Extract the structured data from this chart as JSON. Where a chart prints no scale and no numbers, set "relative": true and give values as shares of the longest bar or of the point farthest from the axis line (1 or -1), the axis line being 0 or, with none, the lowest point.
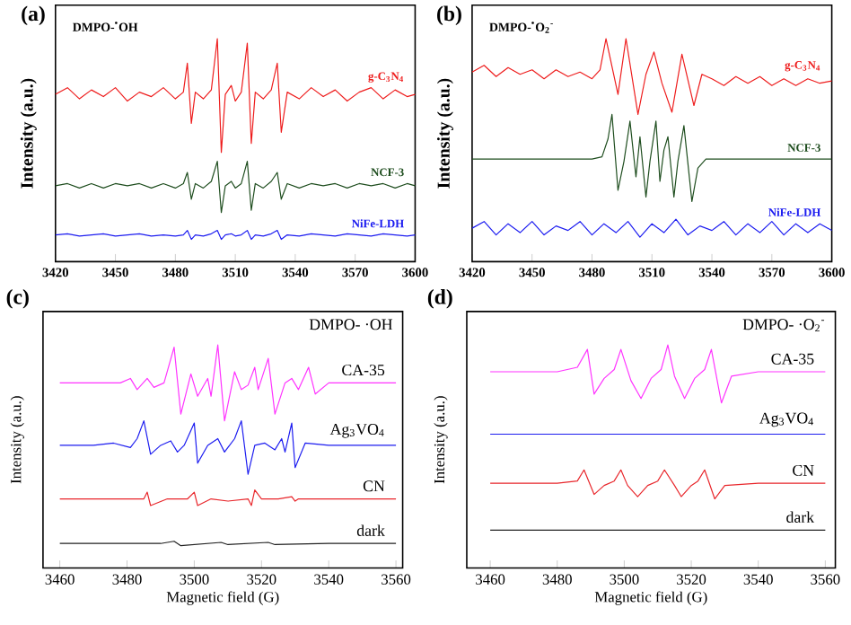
{
  "chart_data": [
    {
      "type": "line",
      "title": "(a)",
      "ylabel": "Intensity (a.u.)",
      "relative": true,
      "annotations": [
        "DMPO-$^{•}$OH"
      ],
      "xlim": [
        3420,
        3600
      ],
      "xticks": [
        3420,
        3450,
        3480,
        3510,
        3540,
        3570,
        3600
      ],
      "series": [
        {
          "name": "g-C$_{3}$N$_{4}$",
          "color": "#ee1c1c",
          "x": [
            3420,
            3426,
            3432,
            3438,
            3444,
            3450,
            3456,
            3462,
            3468,
            3474,
            3480,
            3484,
            3486,
            3488,
            3490,
            3494,
            3498,
            3501,
            3503,
            3505,
            3508,
            3510,
            3513,
            3516,
            3518,
            3520,
            3524,
            3528,
            3531,
            3533,
            3536,
            3542,
            3548,
            3554,
            3560,
            3566,
            3572,
            3578,
            3584,
            3590,
            3596,
            3600
          ],
          "values": [
            0.75,
            0.78,
            0.73,
            0.77,
            0.74,
            0.78,
            0.72,
            0.76,
            0.74,
            0.78,
            0.73,
            0.76,
            0.89,
            0.62,
            0.76,
            0.73,
            0.77,
            1.0,
            0.49,
            0.75,
            0.79,
            0.72,
            0.76,
            0.98,
            0.53,
            0.76,
            0.73,
            0.77,
            0.89,
            0.58,
            0.76,
            0.73,
            0.78,
            0.74,
            0.77,
            0.72,
            0.76,
            0.78,
            0.73,
            0.77,
            0.74,
            0.75
          ]
        },
        {
          "name": "NCF-3",
          "color": "#1e4d1e",
          "x": [
            3420,
            3426,
            3432,
            3438,
            3444,
            3450,
            3456,
            3462,
            3468,
            3474,
            3480,
            3484,
            3486,
            3488,
            3490,
            3494,
            3498,
            3501,
            3503,
            3505,
            3508,
            3510,
            3513,
            3516,
            3518,
            3520,
            3524,
            3528,
            3531,
            3533,
            3536,
            3542,
            3548,
            3554,
            3560,
            3566,
            3572,
            3578,
            3584,
            3590,
            3596,
            3600
          ],
          "values": [
            0.34,
            0.35,
            0.33,
            0.35,
            0.33,
            0.35,
            0.34,
            0.35,
            0.33,
            0.35,
            0.33,
            0.35,
            0.4,
            0.28,
            0.35,
            0.33,
            0.36,
            0.45,
            0.22,
            0.34,
            0.36,
            0.33,
            0.35,
            0.45,
            0.23,
            0.35,
            0.33,
            0.36,
            0.4,
            0.28,
            0.35,
            0.33,
            0.35,
            0.34,
            0.35,
            0.33,
            0.35,
            0.34,
            0.35,
            0.33,
            0.35,
            0.34
          ]
        },
        {
          "name": "NiFe-LDH",
          "color": "#1c1cf0",
          "x": [
            3420,
            3426,
            3432,
            3438,
            3444,
            3450,
            3456,
            3462,
            3468,
            3474,
            3480,
            3484,
            3486,
            3488,
            3490,
            3494,
            3498,
            3501,
            3503,
            3505,
            3508,
            3510,
            3513,
            3516,
            3518,
            3520,
            3524,
            3528,
            3531,
            3533,
            3536,
            3542,
            3548,
            3554,
            3560,
            3566,
            3572,
            3578,
            3584,
            3590,
            3596,
            3600
          ],
          "values": [
            0.12,
            0.125,
            0.115,
            0.12,
            0.125,
            0.115,
            0.12,
            0.125,
            0.115,
            0.12,
            0.115,
            0.12,
            0.14,
            0.1,
            0.12,
            0.115,
            0.125,
            0.14,
            0.1,
            0.12,
            0.125,
            0.115,
            0.12,
            0.14,
            0.1,
            0.12,
            0.115,
            0.125,
            0.14,
            0.1,
            0.12,
            0.115,
            0.125,
            0.12,
            0.115,
            0.125,
            0.12,
            0.115,
            0.125,
            0.12,
            0.115,
            0.12
          ]
        }
      ]
    },
    {
      "type": "line",
      "title": "(b)",
      "ylabel": "Intensity (a.u.)",
      "relative": true,
      "annotations": [
        "DMPO-$^{•}$O$_{2}$$^{-}$"
      ],
      "xlim": [
        3420,
        3600
      ],
      "xticks": [
        3420,
        3450,
        3480,
        3510,
        3540,
        3570,
        3600
      ],
      "series": [
        {
          "name": "g-C$_{3}$N$_{4}$",
          "color": "#ee1c1c",
          "x": [
            3420,
            3426,
            3432,
            3438,
            3444,
            3450,
            3456,
            3462,
            3468,
            3474,
            3480,
            3484,
            3487,
            3493,
            3497,
            3503,
            3507,
            3511,
            3515,
            3520,
            3525,
            3531,
            3535,
            3540,
            3546,
            3552,
            3558,
            3564,
            3570,
            3576,
            3582,
            3588,
            3594,
            3600
          ],
          "values": [
            0.85,
            0.88,
            0.83,
            0.87,
            0.84,
            0.86,
            0.82,
            0.86,
            0.83,
            0.85,
            0.82,
            0.86,
            1.0,
            0.75,
            1.0,
            0.66,
            0.84,
            0.94,
            0.8,
            0.67,
            0.93,
            0.7,
            0.84,
            0.82,
            0.79,
            0.83,
            0.8,
            0.83,
            0.79,
            0.82,
            0.79,
            0.82,
            0.8,
            0.81
          ]
        },
        {
          "name": "NCF-3",
          "color": "#1e4d1e",
          "x": [
            3420,
            3440,
            3460,
            3480,
            3485,
            3488,
            3490,
            3493,
            3496,
            3499,
            3502,
            3504,
            3507,
            3509,
            3512,
            3514,
            3516,
            3518,
            3521,
            3523,
            3526,
            3530,
            3533,
            3537,
            3545,
            3560,
            3580,
            3600
          ],
          "values": [
            0.46,
            0.46,
            0.46,
            0.46,
            0.47,
            0.55,
            0.66,
            0.32,
            0.45,
            0.63,
            0.38,
            0.56,
            0.29,
            0.45,
            0.63,
            0.36,
            0.5,
            0.56,
            0.29,
            0.45,
            0.61,
            0.27,
            0.42,
            0.46,
            0.46,
            0.46,
            0.46,
            0.46
          ]
        },
        {
          "name": "NiFe-LDH",
          "color": "#1c1cf0",
          "x": [
            3420,
            3426,
            3432,
            3438,
            3444,
            3450,
            3456,
            3462,
            3468,
            3474,
            3480,
            3486,
            3492,
            3498,
            3504,
            3510,
            3516,
            3522,
            3528,
            3534,
            3540,
            3546,
            3552,
            3558,
            3564,
            3570,
            3576,
            3582,
            3588,
            3594,
            3600
          ],
          "values": [
            0.15,
            0.18,
            0.12,
            0.17,
            0.13,
            0.18,
            0.12,
            0.16,
            0.14,
            0.18,
            0.12,
            0.17,
            0.13,
            0.18,
            0.11,
            0.17,
            0.13,
            0.19,
            0.12,
            0.16,
            0.14,
            0.18,
            0.12,
            0.17,
            0.13,
            0.18,
            0.12,
            0.17,
            0.13,
            0.17,
            0.14
          ]
        }
      ]
    },
    {
      "type": "line",
      "title": "(c)",
      "ylabel": "Intensity (a.u.)",
      "xlabel": "Magnetic field (G)",
      "relative": true,
      "annotations": [
        "DMPO- ·OH"
      ],
      "xlim": [
        3455,
        3562
      ],
      "xticks": [
        3460,
        3480,
        3500,
        3520,
        3540,
        3560
      ],
      "series": [
        {
          "name": "CA-35",
          "color": "#ff33ff",
          "x": [
            3460,
            3470,
            3478,
            3481,
            3483,
            3486,
            3488,
            3491,
            3494,
            3496,
            3499,
            3501,
            3504,
            3505,
            3507,
            3509,
            3512,
            3514,
            3516,
            3518,
            3519,
            3522,
            3524,
            3527,
            3529,
            3531,
            3534,
            3536,
            3540,
            3550,
            3560
          ],
          "values": [
            0.83,
            0.83,
            0.83,
            0.85,
            0.8,
            0.85,
            0.81,
            0.83,
            0.99,
            0.69,
            0.87,
            0.77,
            0.85,
            0.77,
            1.0,
            0.66,
            0.88,
            0.8,
            0.82,
            0.9,
            0.8,
            0.94,
            0.69,
            0.83,
            0.85,
            0.8,
            0.9,
            0.78,
            0.83,
            0.83,
            0.83
          ]
        },
        {
          "name": "Ag$_{3}$VO$_{4}$",
          "color": "#1c1cf0",
          "x": [
            3460,
            3470,
            3476,
            3481,
            3483,
            3485,
            3487,
            3490,
            3493,
            3495,
            3497,
            3500,
            3501,
            3504,
            3507,
            3509,
            3512,
            3514,
            3516,
            3518,
            3521,
            3524,
            3526,
            3527,
            3529,
            3530,
            3533,
            3540,
            3550,
            3560
          ],
          "values": [
            0.55,
            0.55,
            0.56,
            0.54,
            0.58,
            0.66,
            0.51,
            0.55,
            0.57,
            0.52,
            0.55,
            0.65,
            0.47,
            0.55,
            0.58,
            0.52,
            0.58,
            0.66,
            0.42,
            0.55,
            0.56,
            0.53,
            0.58,
            0.52,
            0.65,
            0.45,
            0.56,
            0.55,
            0.55,
            0.55
          ]
        },
        {
          "name": "CN",
          "color": "#e8262b",
          "x": [
            3460,
            3475,
            3485,
            3486,
            3487,
            3492,
            3498,
            3500,
            3501,
            3505,
            3510,
            3516,
            3517,
            3518,
            3520,
            3525,
            3529,
            3530,
            3531,
            3540,
            3560
          ],
          "values": [
            0.31,
            0.31,
            0.31,
            0.34,
            0.28,
            0.31,
            0.31,
            0.34,
            0.28,
            0.31,
            0.3,
            0.31,
            0.28,
            0.35,
            0.31,
            0.31,
            0.32,
            0.3,
            0.31,
            0.31,
            0.31
          ]
        },
        {
          "name": "dark",
          "color": "#222222",
          "x": [
            3460,
            3490,
            3494,
            3496,
            3508,
            3510,
            3522,
            3524,
            3540,
            3560
          ],
          "values": [
            0.11,
            0.11,
            0.12,
            0.1,
            0.115,
            0.105,
            0.115,
            0.105,
            0.11,
            0.11
          ]
        }
      ]
    },
    {
      "type": "line",
      "title": "(d)",
      "ylabel": "Intensity (a.u.)",
      "xlabel": "Magnetic field (G)",
      "relative": true,
      "annotations": [
        "DMPO- ·O$_{2}$$^{-}$"
      ],
      "xlim": [
        3453,
        3563
      ],
      "xticks": [
        3460,
        3480,
        3500,
        3520,
        3540,
        3560
      ],
      "series": [
        {
          "name": "CA-35",
          "color": "#ff33ff",
          "x": [
            3460,
            3480,
            3486,
            3489,
            3491,
            3494,
            3497,
            3499,
            3502,
            3505,
            3508,
            3511,
            3513,
            3515,
            3518,
            3521,
            3524,
            3526,
            3529,
            3532,
            3540,
            3560
          ],
          "values": [
            0.88,
            0.88,
            0.9,
            0.98,
            0.78,
            0.85,
            0.89,
            0.98,
            0.84,
            0.76,
            0.85,
            0.89,
            1.0,
            0.86,
            0.76,
            0.85,
            0.89,
            0.98,
            0.74,
            0.86,
            0.88,
            0.88
          ]
        },
        {
          "name": "Ag$_{3}$VO$_{4}$",
          "color": "#1c1cf0",
          "x": [
            3460,
            3560
          ],
          "values": [
            0.6,
            0.6
          ]
        },
        {
          "name": "CN",
          "color": "#e8262b",
          "x": [
            3460,
            3480,
            3486,
            3488,
            3491,
            3494,
            3497,
            3499,
            3501,
            3504,
            3507,
            3510,
            3512,
            3515,
            3517,
            3520,
            3522,
            3524,
            3527,
            3530,
            3540,
            3560
          ],
          "values": [
            0.38,
            0.38,
            0.39,
            0.44,
            0.33,
            0.37,
            0.39,
            0.44,
            0.37,
            0.32,
            0.37,
            0.39,
            0.44,
            0.37,
            0.32,
            0.37,
            0.39,
            0.44,
            0.31,
            0.37,
            0.38,
            0.38
          ]
        },
        {
          "name": "dark",
          "color": "#222222",
          "x": [
            3460,
            3560
          ],
          "values": [
            0.17,
            0.17
          ]
        }
      ]
    }
  ]
}
